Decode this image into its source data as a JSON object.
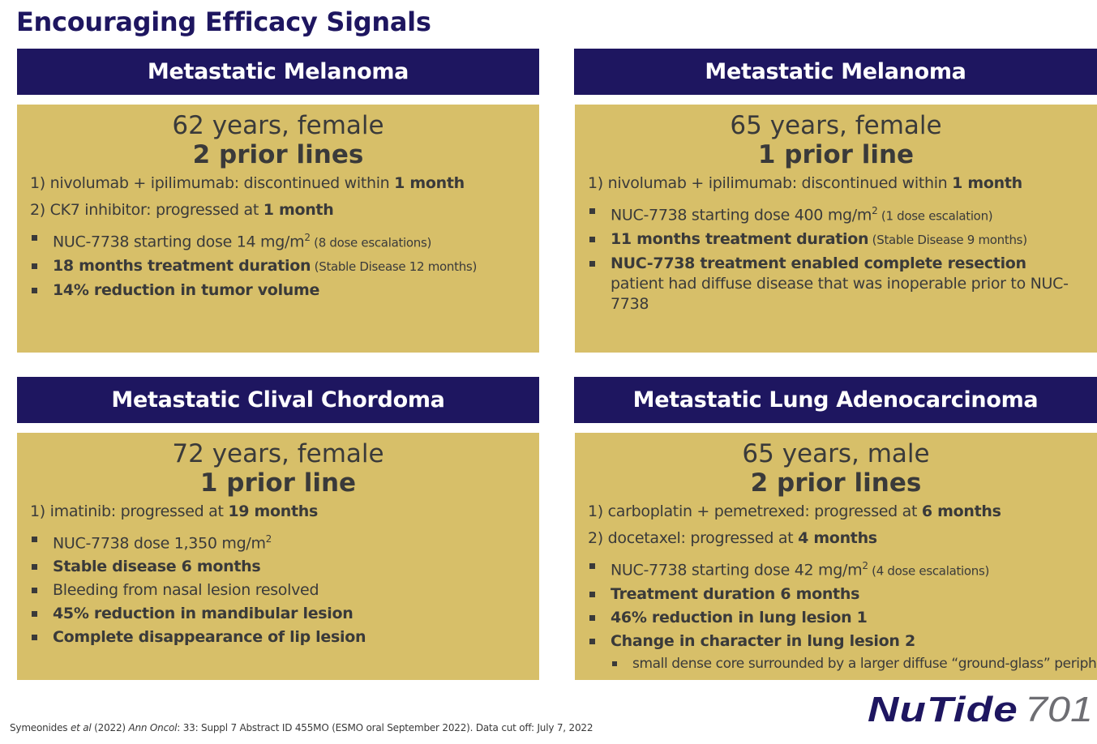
{
  "slide_title": "Encouraging Efficacy Signals",
  "panels": [
    {
      "header": "Metastatic Melanoma",
      "patient": "62 years, female",
      "prior_lines": "2 prior lines",
      "history": [
        {
          "text": "1) nivolumab + ipilimumab: discontinued within ",
          "bold": "1 month"
        },
        {
          "text": "2) CK7 inhibitor: progressed at ",
          "bold": "1 month"
        }
      ],
      "bullets": [
        {
          "text": "NUC-7738 starting dose 14 mg/m",
          "sup": "2",
          "small": " (8 dose escalations)"
        },
        {
          "bold": "18 months treatment duration",
          "small": " (Stable Disease 12 months)"
        },
        {
          "bold": "14% reduction in tumor volume"
        }
      ]
    },
    {
      "header": "Metastatic Melanoma",
      "patient": "65 years, female",
      "prior_lines": "1 prior line",
      "history": [
        {
          "text": "1) nivolumab + ipilimumab: discontinued within ",
          "bold": "1 month"
        }
      ],
      "bullets": [
        {
          "text": "NUC-7738 starting dose 400 mg/m",
          "sup": "2",
          "small": " (1 dose escalation)"
        },
        {
          "bold": "11 months treatment duration",
          "small": " (Stable Disease 9 months)"
        },
        {
          "bold": "NUC-7738 treatment enabled complete resection",
          "text_after": " patient had diffuse disease that was inoperable prior to NUC-7738"
        }
      ]
    },
    {
      "header": "Metastatic Clival Chordoma",
      "patient": "72 years, female",
      "prior_lines": "1 prior line",
      "history": [
        {
          "text": "1) imatinib: progressed at ",
          "bold": "19 months"
        }
      ],
      "bullets": [
        {
          "text": "NUC-7738 dose 1,350 mg/m",
          "sup": "2"
        },
        {
          "bold": "Stable disease 6 months"
        },
        {
          "text": "Bleeding from nasal lesion resolved"
        },
        {
          "bold": "45% reduction in mandibular lesion"
        },
        {
          "bold": "Complete disappearance of lip lesion"
        }
      ]
    },
    {
      "header": "Metastatic Lung Adenocarcinoma",
      "patient": "65 years, male",
      "prior_lines": "2 prior lines",
      "history": [
        {
          "text": "1) carboplatin + pemetrexed: progressed at ",
          "bold": "6 months"
        },
        {
          "text": "2) docetaxel: progressed at ",
          "bold": "4 months"
        }
      ],
      "bullets": [
        {
          "text": "NUC-7738 starting dose 42 mg/m",
          "sup": "2",
          "small": " (4 dose escalations)"
        },
        {
          "bold": "Treatment duration 6 months"
        },
        {
          "bold": "46% reduction in lung lesion 1"
        },
        {
          "bold": "Change in character in lung lesion 2"
        }
      ],
      "sub_bullet": "small dense core surrounded by a larger diffuse “ground-glass” periphery"
    }
  ],
  "footnote": {
    "author": "Symeonides ",
    "etal": "et al",
    "year": " (2022) ",
    "journal": "Ann Oncol",
    "rest": ": 33: Suppl 7 Abstract ID 455MO (ESMO oral September 2022). Data cut off: July 7, 2022"
  },
  "logo": {
    "text_main": "NuTide",
    "text_num": "701"
  },
  "colors": {
    "header_navy": "#1e1660",
    "panel_gold": "#d7bf69",
    "logo_gray": "#6e6e73"
  }
}
